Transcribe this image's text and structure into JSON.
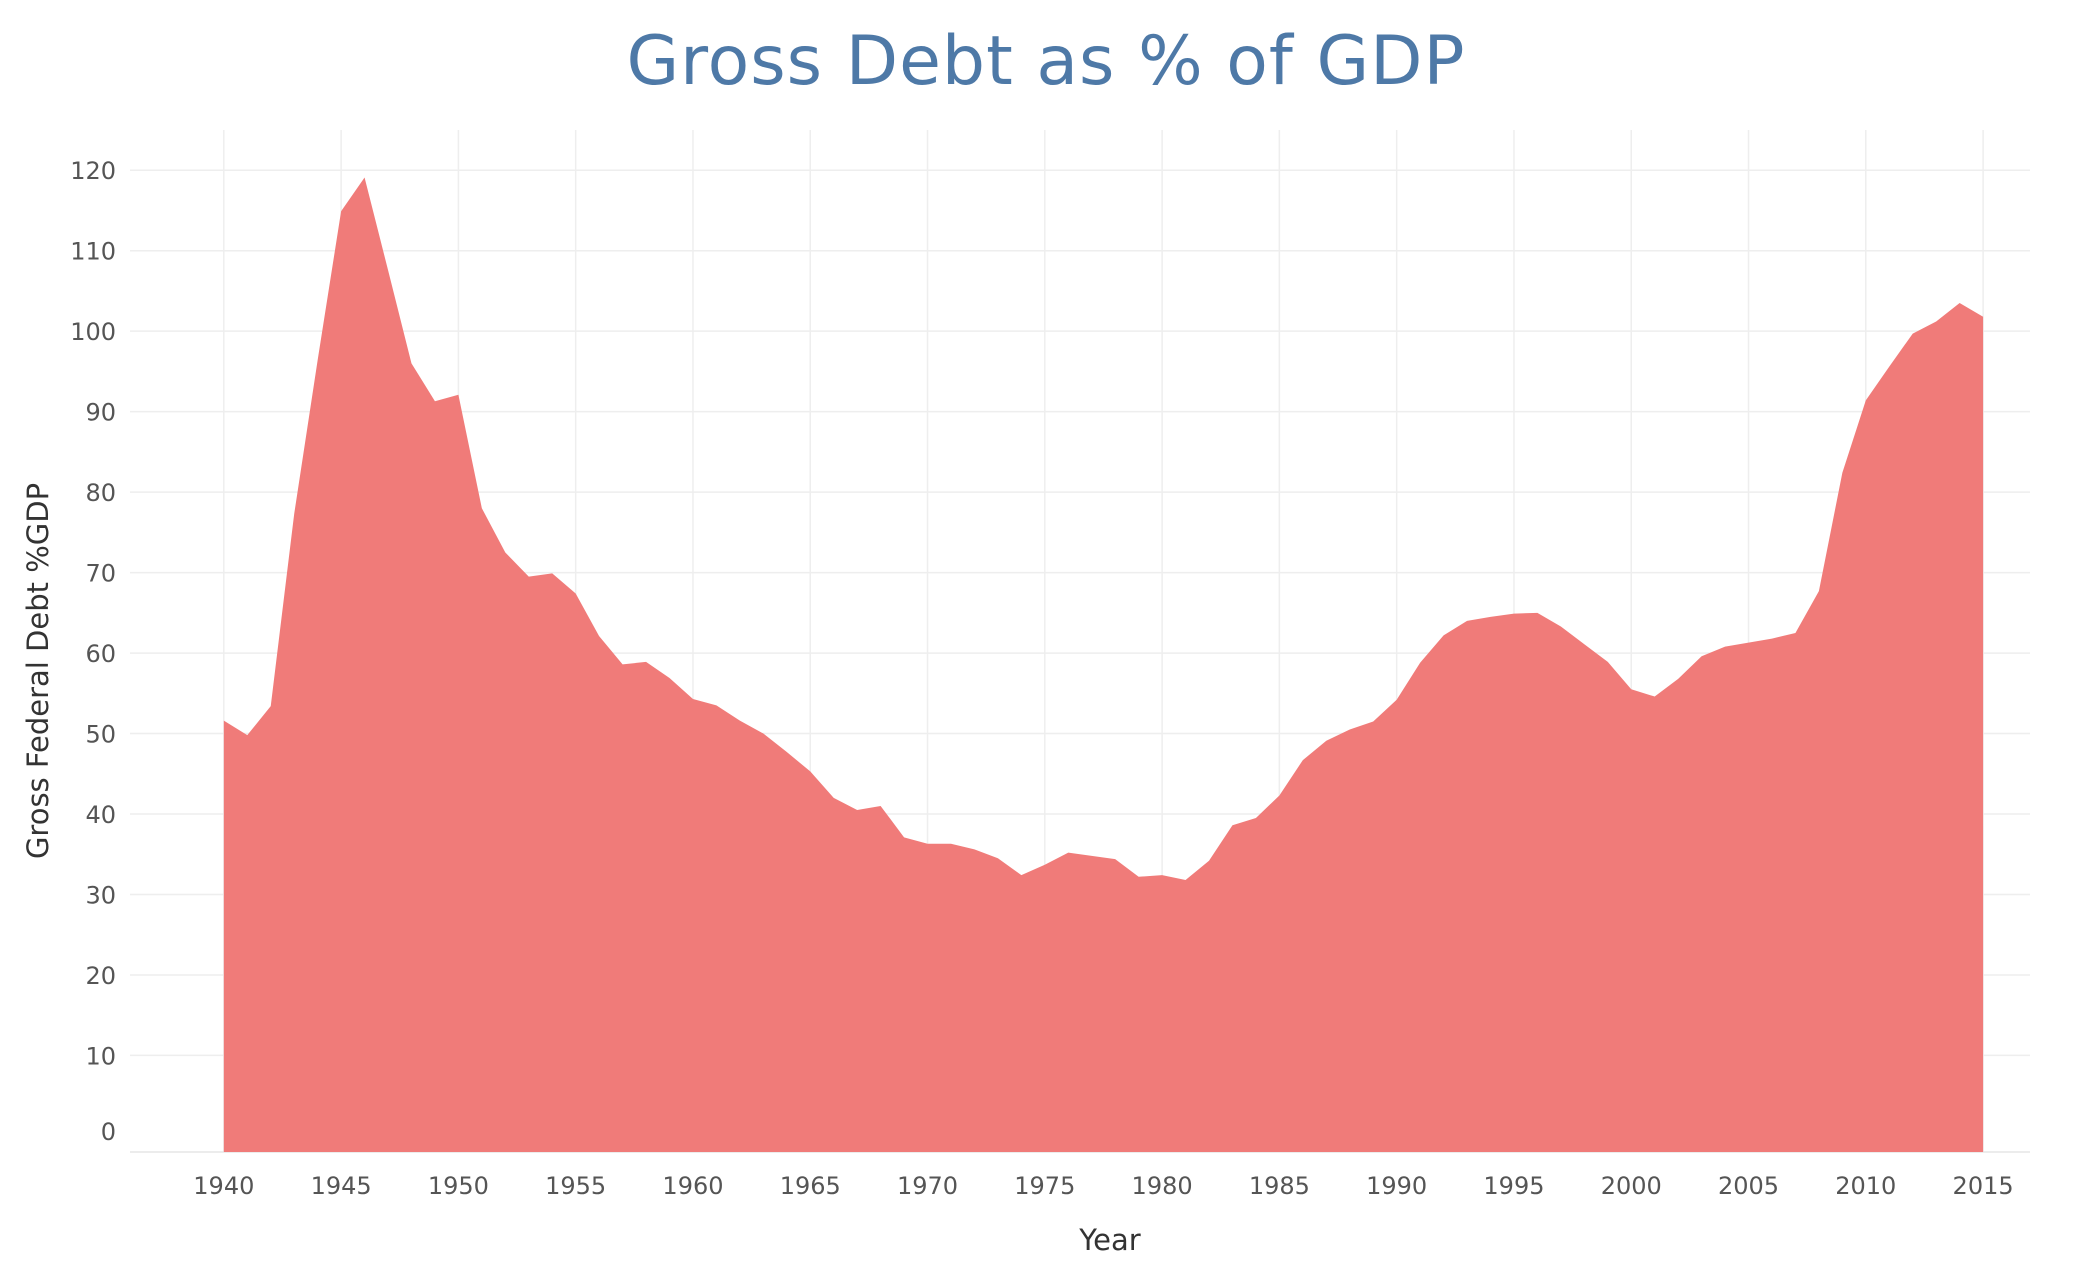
{
  "chart_data": {
    "type": "area",
    "title": "Gross Debt as % of GDP",
    "xlabel": "Year",
    "ylabel": "Gross Federal Debt %GDP",
    "xlim": [
      1936,
      2017
    ],
    "ylim": [
      -2,
      125
    ],
    "x_ticks": [
      1940,
      1945,
      1950,
      1955,
      1960,
      1965,
      1970,
      1975,
      1980,
      1985,
      1990,
      1995,
      2000,
      2005,
      2010,
      2015
    ],
    "y_ticks": [
      0,
      10,
      20,
      30,
      40,
      50,
      60,
      70,
      80,
      90,
      100,
      110,
      120
    ],
    "grid": true,
    "legend": "none",
    "color": "#f07b79",
    "x": [
      1940,
      1941,
      1942,
      1943,
      1944,
      1945,
      1946,
      1947,
      1948,
      1949,
      1950,
      1951,
      1952,
      1953,
      1954,
      1955,
      1956,
      1957,
      1958,
      1959,
      1960,
      1961,
      1962,
      1963,
      1964,
      1965,
      1966,
      1967,
      1968,
      1969,
      1970,
      1971,
      1972,
      1973,
      1974,
      1975,
      1976,
      1977,
      1978,
      1979,
      1980,
      1981,
      1982,
      1983,
      1984,
      1985,
      1986,
      1987,
      1988,
      1989,
      1990,
      1991,
      1992,
      1993,
      1994,
      1995,
      1996,
      1997,
      1998,
      1999,
      2000,
      2001,
      2002,
      2003,
      2004,
      2005,
      2006,
      2007,
      2008,
      2009,
      2010,
      2011,
      2012,
      2013,
      2014,
      2015
    ],
    "values": [
      51.6,
      49.8,
      53.4,
      77.3,
      96.4,
      114.9,
      119.1,
      107.6,
      96.0,
      91.3,
      92.1,
      78.0,
      72.5,
      69.5,
      69.9,
      67.4,
      62.1,
      58.6,
      58.9,
      56.9,
      54.3,
      53.5,
      51.6,
      50.0,
      47.7,
      45.3,
      42.0,
      40.5,
      41.0,
      37.1,
      36.3,
      36.3,
      35.6,
      34.5,
      32.4,
      33.7,
      35.2,
      34.8,
      34.4,
      32.2,
      32.4,
      31.8,
      34.2,
      38.6,
      39.5,
      42.3,
      46.7,
      49.1,
      50.5,
      51.5,
      54.2,
      58.8,
      62.2,
      64.0,
      64.5,
      64.9,
      65.0,
      63.3,
      61.1,
      58.9,
      55.5,
      54.6,
      56.8,
      59.6,
      60.8,
      61.3,
      61.8,
      62.5,
      67.7,
      82.4,
      91.4,
      95.6,
      99.7,
      101.2,
      103.5,
      101.8
    ]
  }
}
